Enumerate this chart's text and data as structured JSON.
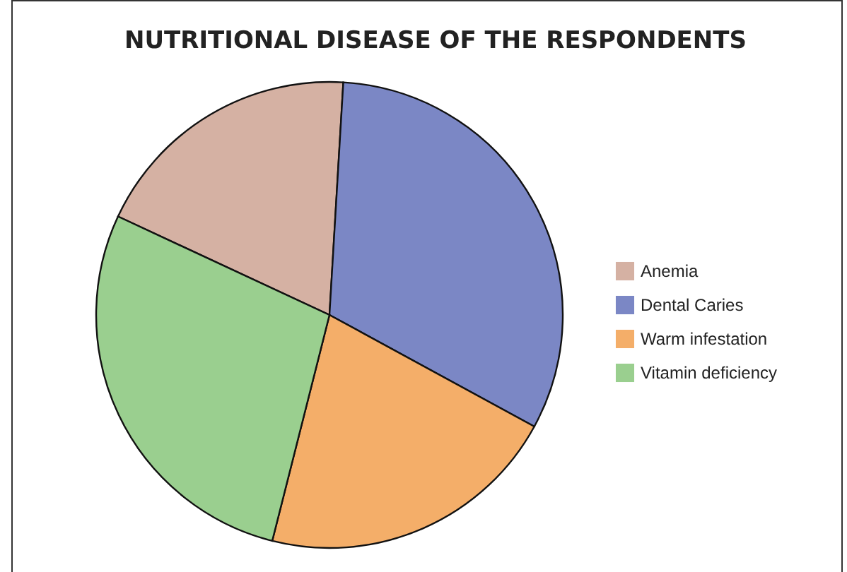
{
  "chart_data": {
    "type": "pie",
    "title": "NUTRITIONAL DISEASE OF THE RESPONDENTS",
    "categories": [
      "Anemia",
      "Dental Caries",
      "Warm infestation",
      "Vitamin deficiency"
    ],
    "values": [
      19,
      32,
      21,
      28
    ],
    "colors": [
      "#d5b1a3",
      "#7b87c5",
      "#f4ae69",
      "#9acf8f"
    ],
    "legend": "right"
  }
}
